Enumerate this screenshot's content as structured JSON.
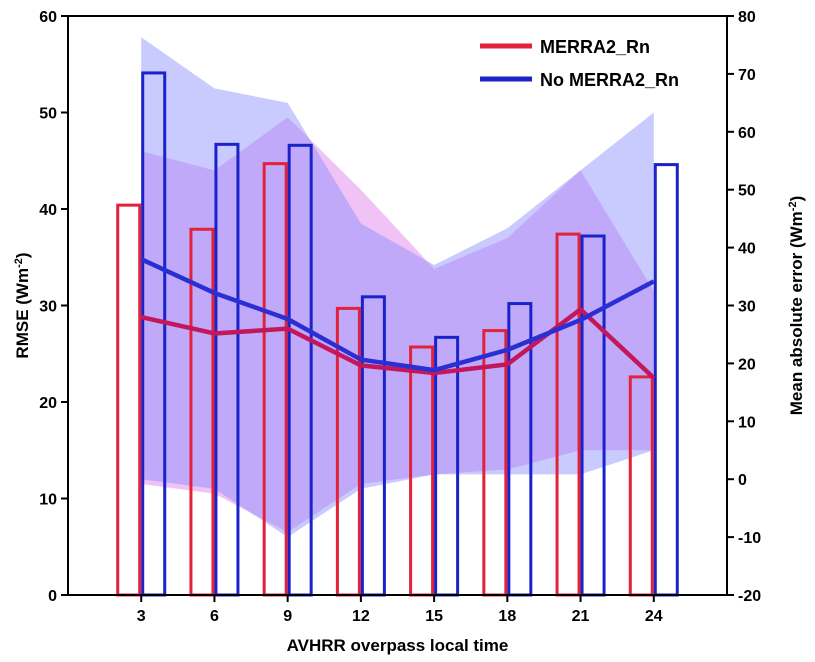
{
  "chart_data": {
    "type": "bar",
    "title": "",
    "xlabel": "AVHRR overpass local time",
    "ylabel": "RMSE (Wm",
    "ylabel_sup": "-2",
    "ylabel_close": ")",
    "y2label": "Mean absolute error (Wm",
    "y2label_sup": "-2",
    "y2label_close": ")",
    "x": [
      3,
      6,
      9,
      12,
      15,
      18,
      21,
      24
    ],
    "xlim": [
      0,
      27
    ],
    "ylim": [
      0,
      60
    ],
    "y2lim": [
      -20,
      80
    ],
    "xticks": [
      "3",
      "6",
      "9",
      "12",
      "15",
      "18",
      "21",
      "24"
    ],
    "yticks": [
      "0",
      "10",
      "20",
      "30",
      "40",
      "50",
      "60"
    ],
    "y2ticks": [
      "-20",
      "-10",
      "0",
      "10",
      "20",
      "30",
      "40",
      "50",
      "60",
      "70",
      "80"
    ],
    "legend_position": "top-right",
    "grid": false,
    "series": [
      {
        "name": "MERRA2_Rn",
        "color": "#e2213a",
        "bar_values": [
          40.4,
          37.9,
          44.7,
          29.7,
          25.7,
          27.4,
          37.4,
          22.6
        ],
        "line_values": [
          28.8,
          27.1,
          27.6,
          23.8,
          23.0,
          23.9,
          29.6,
          22.5
        ],
        "band_upper": [
          46.0,
          44.0,
          49.5,
          42.0,
          33.8,
          37.0,
          44.0,
          31.5
        ],
        "band_lower": [
          11.5,
          10.5,
          6.5,
          11.5,
          12.5,
          13.0,
          15.0,
          15.0
        ]
      },
      {
        "name": "No MERRA2_Rn",
        "color": "#1a22c9",
        "bar_values": [
          54.1,
          46.7,
          46.6,
          30.9,
          26.7,
          30.2,
          37.2,
          44.6
        ],
        "line_values": [
          34.8,
          31.3,
          28.6,
          24.4,
          23.3,
          25.4,
          28.5,
          32.5
        ],
        "band_upper": [
          57.8,
          52.5,
          51.0,
          38.5,
          34.2,
          38.0,
          44.0,
          50.0
        ],
        "band_lower": [
          12.0,
          11.0,
          6.0,
          11.0,
          12.5,
          12.5,
          12.5,
          15.0
        ]
      }
    ]
  }
}
